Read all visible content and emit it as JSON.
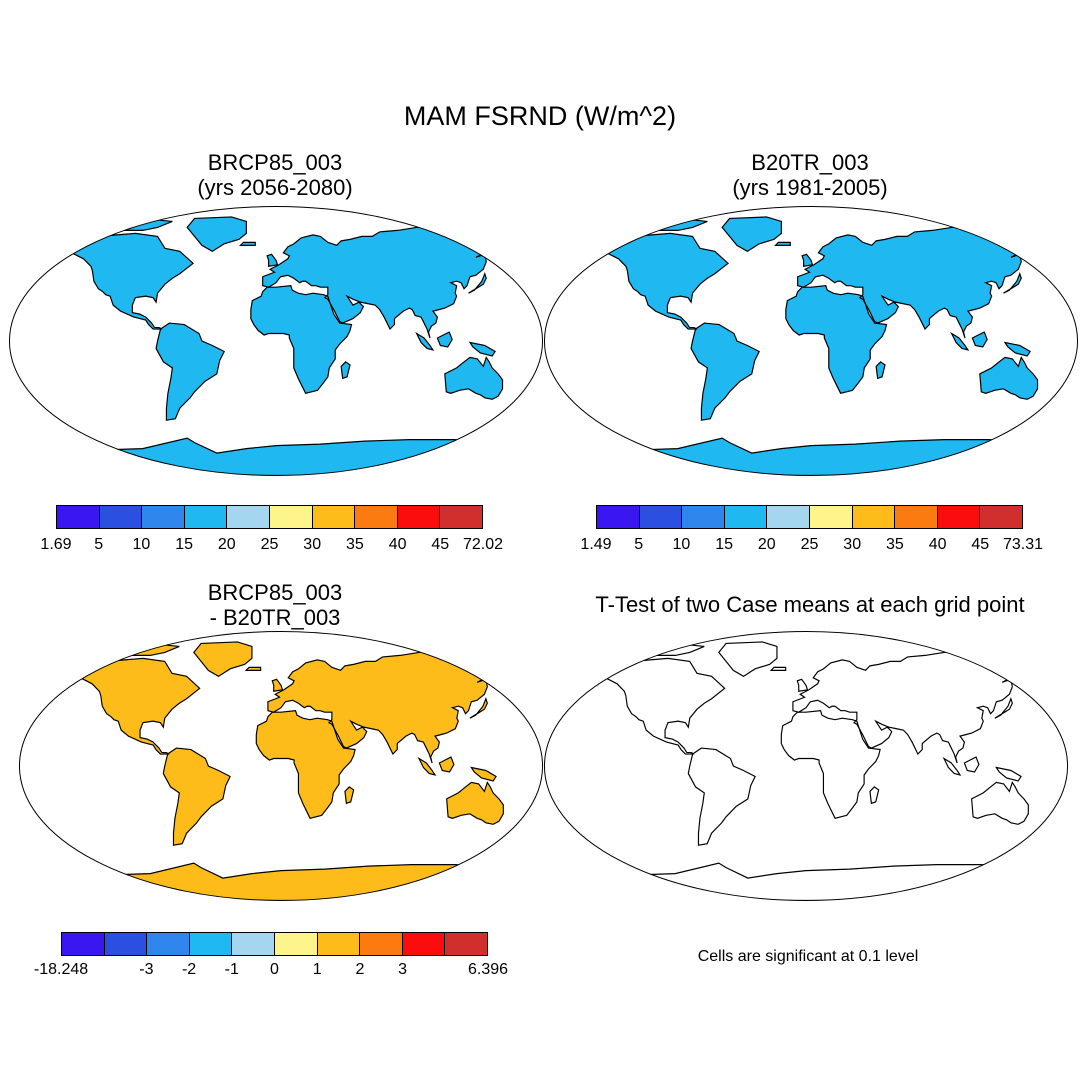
{
  "title": "MAM FSRND (W/m^2)",
  "panels": [
    {
      "line1": "BRCP85_003",
      "line2": "(yrs 2056-2080)"
    },
    {
      "line1": "B20TR_003",
      "line2": "(yrs 1981-2005)"
    },
    {
      "line1": "BRCP85_003",
      "line2": "- B20TR_003"
    },
    {
      "line1": "T-Test of two Case means at each grid point"
    }
  ],
  "colorbars": [
    {
      "ticks": [
        "1.69",
        "5",
        "10",
        "15",
        "20",
        "25",
        "30",
        "35",
        "40",
        "45",
        "72.02"
      ]
    },
    {
      "ticks": [
        "1.49",
        "5",
        "10",
        "15",
        "20",
        "25",
        "30",
        "35",
        "40",
        "45",
        "73.31"
      ]
    },
    {
      "ticks": [
        "-18.248",
        "",
        "-3",
        "-2",
        "-1",
        "0",
        "1",
        "2",
        "3",
        "",
        "6.396"
      ]
    }
  ],
  "palette": [
    "#3a17f0",
    "#2b4fe0",
    "#2f86ec",
    "#1fb8f0",
    "#a5d6f0",
    "#fdf58b",
    "#fdbc1a",
    "#fb7b10",
    "#fc0d0d",
    "#d12e2e"
  ],
  "significance_color": "#ff0000",
  "note": "Cells are significant at 0.1 level"
}
